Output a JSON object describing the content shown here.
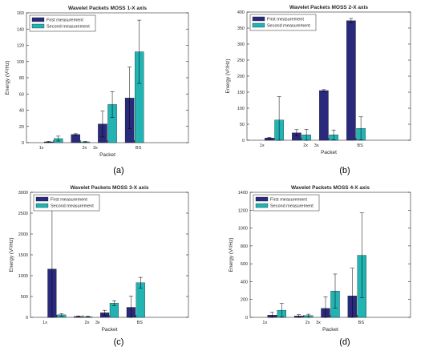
{
  "figure": {
    "panel_tags": [
      "(a)",
      "(b)",
      "(c)",
      "(d)"
    ]
  },
  "legend": {
    "first": "First measurement",
    "second": "Second measurement"
  },
  "colors": {
    "first": "#2a2a7d",
    "second": "#22b3b3",
    "axis": "#262626",
    "error_bar": "#000000",
    "background": "#ffffff"
  },
  "chart_data": [
    {
      "type": "bar",
      "title": "Wavelet Packets MOSS 1-X axis",
      "xlabel": "Packet",
      "ylabel": "Energy (V²/Hz)",
      "categories": [
        "1x",
        "2x",
        "3x",
        "BS"
      ],
      "ylim": [
        0,
        160
      ],
      "yticks": [
        0,
        20,
        40,
        60,
        80,
        100,
        120,
        140,
        160
      ],
      "legend_position": "top-left",
      "grid": false,
      "series": [
        {
          "name": "First measurement",
          "values": [
            1,
            10,
            23,
            55
          ],
          "errors": [
            0.5,
            1,
            16,
            38
          ]
        },
        {
          "name": "Second measurement",
          "values": [
            5,
            1,
            47,
            112
          ],
          "errors": [
            3,
            0.5,
            16,
            39
          ]
        }
      ]
    },
    {
      "type": "bar",
      "title": "Wavelet Packets MOSS 2-X axis",
      "xlabel": "Packet",
      "ylabel": "Energy (V²/Hz)",
      "categories": [
        "1x",
        "2x",
        "3x",
        "BS"
      ],
      "ylim": [
        0,
        400
      ],
      "yticks": [
        0,
        50,
        100,
        150,
        200,
        250,
        300,
        350,
        400
      ],
      "legend_position": "top-left",
      "grid": false,
      "series": [
        {
          "name": "First measurement",
          "values": [
            7,
            23,
            155,
            373
          ],
          "errors": [
            2,
            10,
            3,
            7
          ]
        },
        {
          "name": "Second measurement",
          "values": [
            63,
            17,
            17,
            37
          ],
          "errors": [
            73,
            17,
            15,
            36
          ]
        }
      ]
    },
    {
      "type": "bar",
      "title": "Wavelet Packets MOSS 3-X axis",
      "xlabel": "Packet",
      "ylabel": "Energy (V²/Hz)",
      "categories": [
        "1x",
        "2x",
        "3x",
        "BS"
      ],
      "ylim": [
        0,
        3000
      ],
      "yticks": [
        0,
        500,
        1000,
        1500,
        2000,
        2500,
        3000
      ],
      "legend_position": "top-left",
      "grid": false,
      "series": [
        {
          "name": "First measurement",
          "values": [
            1160,
            20,
            110,
            240
          ],
          "errors": [
            1600,
            15,
            60,
            270
          ]
        },
        {
          "name": "Second measurement",
          "values": [
            60,
            15,
            340,
            830
          ],
          "errors": [
            30,
            10,
            60,
            130
          ]
        }
      ]
    },
    {
      "type": "bar",
      "title": "Wavelet Packets MOSS 4-X axis",
      "xlabel": "Packet",
      "ylabel": "Energy (V²/Hz)",
      "categories": [
        "1x",
        "2x",
        "3x",
        "BS"
      ],
      "ylim": [
        0,
        1400
      ],
      "yticks": [
        0,
        200,
        400,
        600,
        800,
        1000,
        1200,
        1400
      ],
      "legend_position": "top-left",
      "grid": false,
      "series": [
        {
          "name": "First measurement",
          "values": [
            25,
            15,
            100,
            240
          ],
          "errors": [
            30,
            15,
            130,
            310
          ]
        },
        {
          "name": "Second measurement",
          "values": [
            80,
            20,
            295,
            695
          ],
          "errors": [
            75,
            15,
            190,
            475
          ]
        }
      ]
    }
  ]
}
